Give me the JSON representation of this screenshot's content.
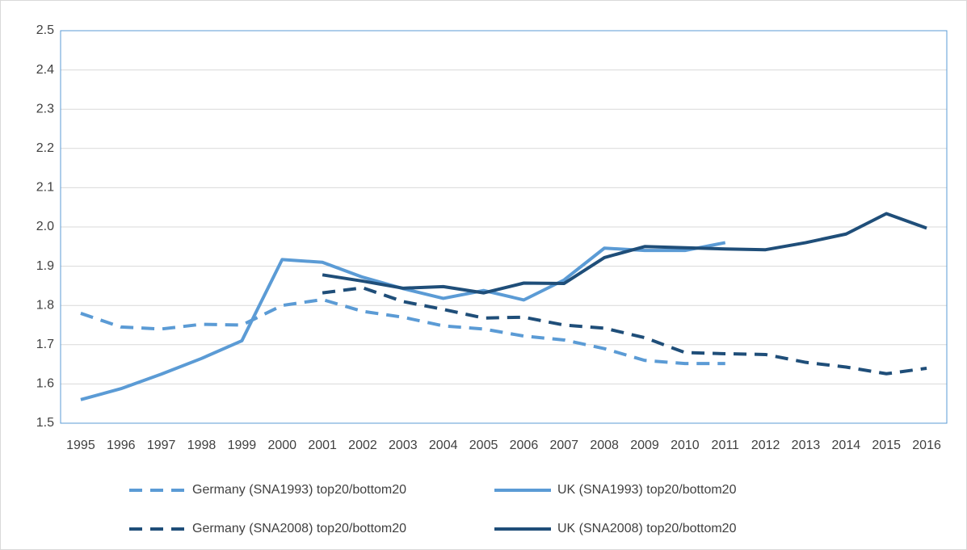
{
  "chart_data": {
    "type": "line",
    "categories": [
      "1995",
      "1996",
      "1997",
      "1998",
      "1999",
      "2000",
      "2001",
      "2002",
      "2003",
      "2004",
      "2005",
      "2006",
      "2007",
      "2008",
      "2009",
      "2010",
      "2011",
      "2012",
      "2013",
      "2014",
      "2015",
      "2016"
    ],
    "series": [
      {
        "name": "Germany (SNA1993) top20/bottom20",
        "color": "#5b9bd5",
        "dashed": true,
        "values": [
          1.78,
          1.745,
          1.74,
          1.752,
          1.75,
          1.8,
          1.815,
          1.785,
          1.77,
          1.748,
          1.74,
          1.722,
          1.712,
          1.69,
          1.66,
          1.652,
          1.652,
          null,
          null,
          null,
          null,
          null
        ]
      },
      {
        "name": "UK (SNA1993) top20/bottom20",
        "color": "#5b9bd5",
        "dashed": false,
        "values": [
          1.56,
          1.588,
          1.625,
          1.665,
          1.71,
          1.917,
          1.91,
          1.872,
          1.843,
          1.818,
          1.838,
          1.814,
          1.865,
          1.946,
          1.94,
          1.94,
          1.96,
          null,
          null,
          null,
          null,
          null
        ]
      },
      {
        "name": "Germany (SNA2008) top20/bottom20",
        "color": "#1f4e79",
        "dashed": true,
        "values": [
          null,
          null,
          null,
          null,
          null,
          null,
          1.832,
          1.845,
          1.81,
          1.79,
          1.768,
          1.77,
          1.75,
          1.742,
          1.718,
          1.68,
          1.677,
          1.675,
          1.655,
          1.643,
          1.626,
          1.64
        ]
      },
      {
        "name": "UK (SNA2008) top20/bottom20",
        "color": "#1f4e79",
        "dashed": false,
        "values": [
          null,
          null,
          null,
          null,
          null,
          null,
          1.878,
          1.862,
          1.844,
          1.848,
          1.832,
          1.857,
          1.856,
          1.922,
          1.95,
          1.947,
          1.944,
          1.942,
          1.96,
          1.982,
          2.034,
          1.997
        ]
      }
    ],
    "ylim": [
      1.5,
      2.5
    ],
    "yticks": [
      1.5,
      1.6,
      1.7,
      1.8,
      1.9,
      {
        "value": 2,
        "label": "2.0"
      },
      2.1,
      2.2,
      2.3,
      2.4,
      2.5
    ],
    "grid": true
  }
}
